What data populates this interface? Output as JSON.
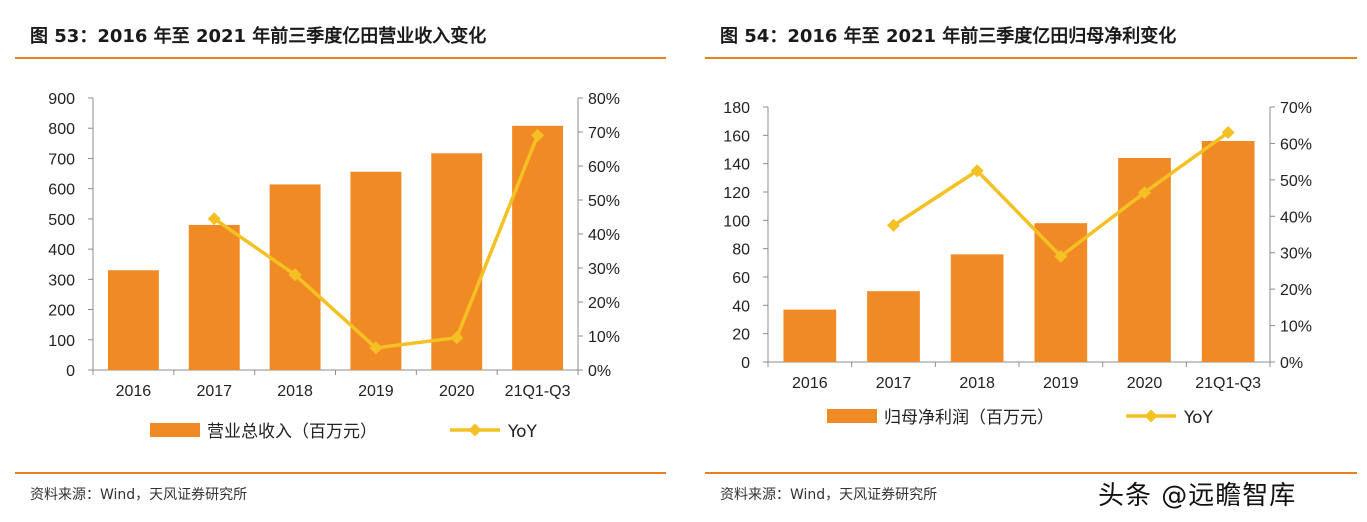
{
  "chart_data": [
    {
      "type": "bar+line",
      "title": "图 53：2016 年至 2021 年前三季度亿田营业收入变化",
      "categories": [
        "2016",
        "2017",
        "2018",
        "2019",
        "2020",
        "21Q1-Q3"
      ],
      "series": [
        {
          "name": "营业总收入（百万元）",
          "kind": "bar",
          "axis": "left",
          "values": [
            330,
            480,
            614,
            656,
            717,
            808
          ]
        },
        {
          "name": "YoY",
          "kind": "line",
          "axis": "right",
          "values": [
            null,
            44.5,
            28.0,
            6.5,
            9.5,
            69.0
          ]
        }
      ],
      "left_axis": {
        "min": 0,
        "max": 900,
        "step": 100,
        "ticks": [
          "0",
          "100",
          "200",
          "300",
          "400",
          "500",
          "600",
          "700",
          "800",
          "900"
        ]
      },
      "right_axis": {
        "min": 0,
        "max": 80,
        "step": 10,
        "ticks": [
          "0%",
          "10%",
          "20%",
          "30%",
          "40%",
          "50%",
          "60%",
          "70%",
          "80%"
        ]
      },
      "source": "资料来源：Wind，天风证券研究所"
    },
    {
      "type": "bar+line",
      "title": "图 54：2016 年至 2021 年前三季度亿田归母净利变化",
      "categories": [
        "2016",
        "2017",
        "2018",
        "2019",
        "2020",
        "21Q1-Q3"
      ],
      "series": [
        {
          "name": "归母净利润（百万元）",
          "kind": "bar",
          "axis": "left",
          "values": [
            37,
            50,
            76,
            98,
            144,
            156
          ]
        },
        {
          "name": "YoY",
          "kind": "line",
          "axis": "right",
          "values": [
            null,
            37.5,
            52.5,
            29.0,
            46.5,
            63.0
          ]
        }
      ],
      "left_axis": {
        "min": 0,
        "max": 180,
        "step": 20,
        "ticks": [
          "0",
          "20",
          "40",
          "60",
          "80",
          "100",
          "120",
          "140",
          "160",
          "180"
        ]
      },
      "right_axis": {
        "min": 0,
        "max": 70,
        "step": 10,
        "ticks": [
          "0%",
          "10%",
          "20%",
          "30%",
          "40%",
          "50%",
          "60%",
          "70%"
        ]
      },
      "source": "资料来源：Wind，天风证券研究所"
    }
  ],
  "colors": {
    "bar": "#f08a24",
    "line": "#f5c024",
    "rule": "#e8821e",
    "axis": "#8c8c8c"
  },
  "watermark": "头条 @远瞻智库"
}
